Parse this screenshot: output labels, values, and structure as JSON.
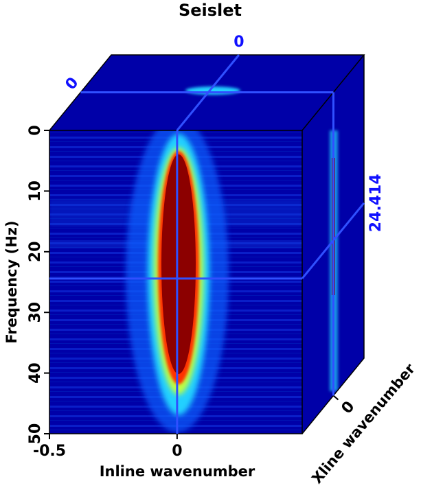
{
  "chart_data": {
    "type": "cube",
    "title": "Seislet",
    "xlabel": "Inline wavenumber",
    "ylabel": "Frequency (Hz)",
    "zlabel": "Xline wavenumber",
    "xlim": [
      -0.5,
      0.49
    ],
    "xticks": [
      {
        "value": -0.5,
        "label": "-0.5"
      },
      0
    ],
    "ylim": [
      0,
      50
    ],
    "yticks": [
      0,
      10,
      20,
      30,
      40,
      50
    ],
    "zlim": [
      -0.5,
      0.49
    ],
    "zticks": [
      0
    ],
    "slices": {
      "inline": 0,
      "xline": 0,
      "frequency": 24.414
    },
    "colormap": "jet"
  }
}
